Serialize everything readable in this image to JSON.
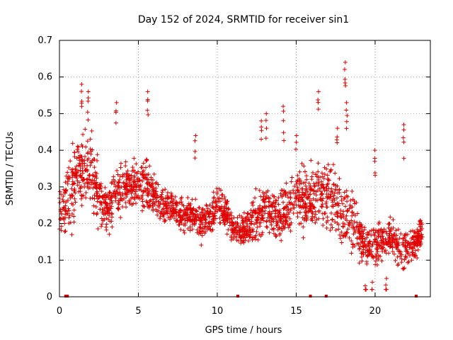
{
  "chart_data": {
    "type": "scatter",
    "title": "Day 152 of 2024, SRMTID for receiver sin1",
    "xlabel": "GPS time / hours",
    "ylabel": "SRMTID / TECUs",
    "xlim": [
      0,
      23.5
    ],
    "ylim": [
      0,
      0.7
    ],
    "x_ticks": [
      0,
      5,
      10,
      15,
      20
    ],
    "x_tick_labels": [
      "0",
      "5",
      "10",
      "15",
      "20"
    ],
    "y_ticks": [
      0,
      0.1,
      0.2,
      0.3,
      0.4,
      0.5,
      0.6,
      0.7
    ],
    "y_tick_labels": [
      "0",
      "0.1",
      "0.2",
      "0.3",
      "0.4",
      "0.5",
      "0.6",
      "0.7"
    ],
    "grid": true,
    "marker": "+",
    "color": "#e00000",
    "series": [
      {
        "name": "sin1",
        "trend": {
          "x": [
            0,
            0.5,
            1.0,
            1.5,
            2.0,
            2.5,
            3.0,
            3.5,
            4.0,
            4.5,
            5.0,
            5.5,
            6.0,
            6.5,
            7.0,
            7.5,
            8.0,
            8.5,
            9.0,
            9.5,
            10.0,
            10.5,
            11.0,
            11.5,
            12.0,
            12.5,
            13.0,
            13.5,
            14.0,
            14.5,
            15.0,
            15.5,
            16.0,
            16.5,
            17.0,
            17.5,
            18.0,
            18.5,
            19.0,
            19.5,
            20.0,
            20.5,
            21.0,
            21.5,
            22.0,
            22.5,
            23.0
          ],
          "y": [
            0.22,
            0.26,
            0.33,
            0.35,
            0.36,
            0.27,
            0.23,
            0.28,
            0.3,
            0.31,
            0.3,
            0.31,
            0.28,
            0.25,
            0.24,
            0.23,
            0.22,
            0.22,
            0.2,
            0.21,
            0.25,
            0.23,
            0.19,
            0.18,
            0.2,
            0.22,
            0.24,
            0.23,
            0.22,
            0.24,
            0.28,
            0.26,
            0.27,
            0.29,
            0.27,
            0.25,
            0.22,
            0.22,
            0.16,
            0.14,
            0.14,
            0.15,
            0.16,
            0.14,
            0.13,
            0.15,
            0.18
          ]
        },
        "spread": [
          0.09,
          0.13,
          0.14,
          0.15,
          0.16,
          0.1,
          0.08,
          0.11,
          0.1,
          0.08,
          0.09,
          0.1,
          0.08,
          0.07,
          0.05,
          0.06,
          0.06,
          0.06,
          0.07,
          0.07,
          0.07,
          0.07,
          0.06,
          0.06,
          0.07,
          0.09,
          0.09,
          0.1,
          0.1,
          0.11,
          0.1,
          0.12,
          0.12,
          0.13,
          0.13,
          0.12,
          0.12,
          0.12,
          0.08,
          0.07,
          0.09,
          0.08,
          0.07,
          0.08,
          0.07,
          0.07,
          0.05
        ],
        "peaks": [
          {
            "x": 1.4,
            "y": 0.58
          },
          {
            "x": 1.8,
            "y": 0.56
          },
          {
            "x": 3.6,
            "y": 0.53
          },
          {
            "x": 5.6,
            "y": 0.56
          },
          {
            "x": 8.6,
            "y": 0.44
          },
          {
            "x": 12.8,
            "y": 0.48
          },
          {
            "x": 13.1,
            "y": 0.5
          },
          {
            "x": 14.2,
            "y": 0.52
          },
          {
            "x": 15.0,
            "y": 0.44
          },
          {
            "x": 16.4,
            "y": 0.56
          },
          {
            "x": 17.6,
            "y": 0.46
          },
          {
            "x": 18.1,
            "y": 0.64
          },
          {
            "x": 18.2,
            "y": 0.53
          },
          {
            "x": 20.0,
            "y": 0.4
          },
          {
            "x": 21.8,
            "y": 0.47
          },
          {
            "x": 19.4,
            "y": 0.03
          },
          {
            "x": 19.8,
            "y": 0.04
          },
          {
            "x": 20.7,
            "y": 0.05
          }
        ],
        "zero_values_x": [
          0.4,
          0.5,
          11.3,
          15.9,
          16.9,
          22.6
        ]
      }
    ]
  }
}
